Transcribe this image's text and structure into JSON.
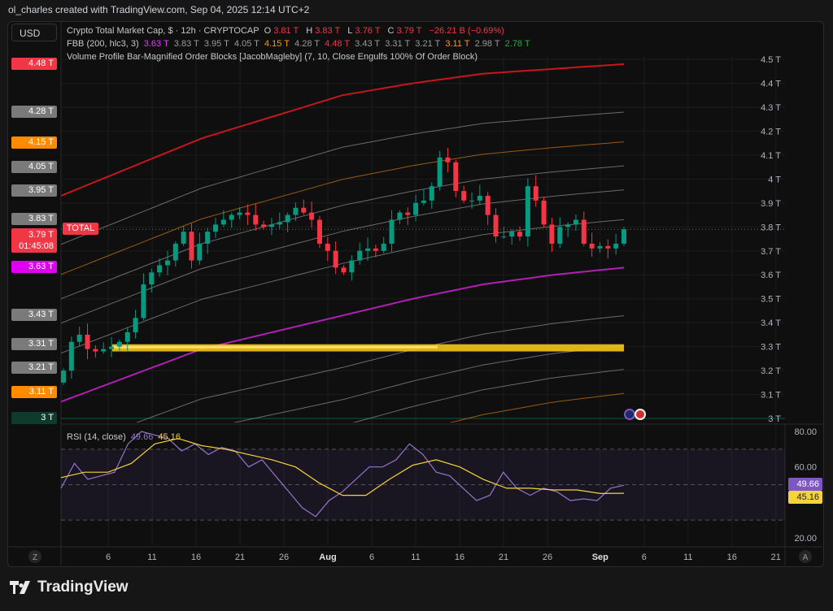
{
  "header": {
    "attribution": "ol_charles created with TradingView.com, Sep 04, 2025 12:14 UTC+2"
  },
  "currency_button": "USD",
  "legend": {
    "symbol": "Crypto Total Market Cap, $ · 12h · CRYPTOCAP",
    "o_label": "O",
    "o": "3.81 T",
    "h_label": "H",
    "h": "3.83 T",
    "l_label": "L",
    "l": "3.76 T",
    "c_label": "C",
    "c": "3.79 T",
    "change": "−26.21 B (−0.69%)",
    "fbb_label": "FBB (200, hlc3, 3)",
    "fbb_values": [
      "3.63 T",
      "3.83 T",
      "3.95 T",
      "4.05 T",
      "4.15 T",
      "4.28 T",
      "4.48 T",
      "3.43 T",
      "3.31 T",
      "3.21 T",
      "3.11 T",
      "2.98 T",
      "2.78 T"
    ],
    "vp_label": "Volume Profile Bar-Magnified Order Blocks [JacobMagleby] (7, 10, Close Engulfs 100% Of Order Block)"
  },
  "price_axis": {
    "ticks": [
      "4.5 T",
      "4.4 T",
      "4.3 T",
      "4.2 T",
      "4.1 T",
      "4 T",
      "3.9 T",
      "3.8 T",
      "3.7 T",
      "3.6 T",
      "3.5 T",
      "3.4 T",
      "3.3 T",
      "3.2 T",
      "3.1 T",
      "3 T"
    ],
    "badges": [
      {
        "label": "4.48 T",
        "value": 4.48,
        "color": "#f23645"
      },
      {
        "label": "4.28 T",
        "value": 4.28,
        "color": "#7a7a7a"
      },
      {
        "label": "4.15 T",
        "value": 4.15,
        "color": "#ff8c00"
      },
      {
        "label": "4.05 T",
        "value": 4.05,
        "color": "#7a7a7a"
      },
      {
        "label": "3.95 T",
        "value": 3.95,
        "color": "#7a7a7a"
      },
      {
        "label": "3.83 T",
        "value": 3.83,
        "color": "#7a7a7a"
      },
      {
        "label": "3.63 T",
        "value": 3.63,
        "color": "#e000f0"
      },
      {
        "label": "3.43 T",
        "value": 3.43,
        "color": "#7a7a7a"
      },
      {
        "label": "3.31 T",
        "value": 3.31,
        "color": "#7a7a7a"
      },
      {
        "label": "3.21 T",
        "value": 3.21,
        "color": "#7a7a7a"
      },
      {
        "label": "3.11 T",
        "value": 3.11,
        "color": "#ff8c00"
      },
      {
        "label": "3 T",
        "value": 3.0,
        "color": "#0e3b2e"
      }
    ],
    "last_price": {
      "label": "3.79 T",
      "countdown": "01:45:08",
      "symbol_tag": "TOTAL",
      "color": "#f23645"
    }
  },
  "time_axis": {
    "labels": [
      "6",
      "11",
      "16",
      "21",
      "26",
      "Aug",
      "6",
      "11",
      "16",
      "21",
      "26",
      "Sep",
      "6",
      "11",
      "16",
      "21"
    ],
    "left_button": "Z",
    "right_button": "A"
  },
  "rsi": {
    "label": "RSI (14, close)",
    "value": "49.66",
    "signal": "45.16",
    "axis": [
      "80.00",
      "60.00",
      "20.00"
    ],
    "colors": {
      "rsi": "#9575cd",
      "signal": "#f5d33a"
    }
  },
  "logo": "TradingView",
  "chart_data": {
    "type": "candlestick",
    "title": "Crypto Total Market Cap, $ · 12h · CRYPTOCAP",
    "date_range": [
      "Jul 1, 2025",
      "Sep 4, 2025"
    ],
    "ylim": [
      2.95,
      4.52
    ],
    "units": "T",
    "closes": [
      3.2,
      3.32,
      3.35,
      3.29,
      3.28,
      3.29,
      3.3,
      3.32,
      3.36,
      3.42,
      3.56,
      3.61,
      3.64,
      3.66,
      3.73,
      3.78,
      3.66,
      3.73,
      3.78,
      3.81,
      3.83,
      3.85,
      3.86,
      3.85,
      3.81,
      3.8,
      3.81,
      3.82,
      3.85,
      3.88,
      3.86,
      3.83,
      3.73,
      3.7,
      3.63,
      3.61,
      3.66,
      3.7,
      3.71,
      3.7,
      3.73,
      3.83,
      3.86,
      3.85,
      3.9,
      3.91,
      3.97,
      4.09,
      4.07,
      3.95,
      3.91,
      3.91,
      3.93,
      3.85,
      3.76,
      3.76,
      3.78,
      3.76,
      3.97,
      3.91,
      3.81,
      3.73,
      3.8,
      3.81,
      3.83,
      3.73,
      3.71,
      3.72,
      3.71,
      3.73,
      3.79
    ],
    "fbb": {
      "basis": [
        3.07,
        3.18,
        3.29,
        3.36,
        3.43,
        3.5,
        3.56,
        3.6,
        3.63
      ],
      "deviation": [
        0.86,
        0.87,
        0.88,
        0.9,
        0.92,
        0.9,
        0.88,
        0.86,
        0.85
      ],
      "levels": [
        {
          "k": 1,
          "color": "#c8161d"
        },
        {
          "k": 0.764,
          "color": "#8a8a8a"
        },
        {
          "k": 0.618,
          "color": "#c8741a"
        },
        {
          "k": 0.5,
          "color": "#8a8a8a"
        },
        {
          "k": 0.382,
          "color": "#8a8a8a"
        },
        {
          "k": 0.236,
          "color": "#8a8a8a"
        },
        {
          "k": 0,
          "color": "#b21fb5"
        },
        {
          "k": -0.236,
          "color": "#8a8a8a"
        },
        {
          "k": -0.382,
          "color": "#8a8a8a"
        },
        {
          "k": -0.5,
          "color": "#8a8a8a"
        },
        {
          "k": -0.618,
          "color": "#c8741a"
        },
        {
          "k": -0.764,
          "color": "#8a8a8a"
        },
        {
          "k": -1,
          "color": "#22ab45"
        }
      ]
    },
    "order_block": {
      "top": 3.31,
      "bottom": 3.28,
      "start": "Jul 7",
      "color": "#f5c518"
    },
    "rsi_series": [
      48,
      62,
      53,
      55,
      57,
      73,
      80,
      78,
      76,
      69,
      73,
      67,
      71,
      69,
      60,
      64,
      55,
      46,
      37,
      32,
      41,
      46,
      53,
      60,
      60,
      64,
      73,
      67,
      57,
      55,
      48,
      41,
      44,
      57,
      48,
      44,
      48,
      46,
      41,
      42,
      41,
      48,
      49.66
    ],
    "rsi_signal": [
      54,
      57,
      57,
      62,
      73,
      76,
      72,
      70,
      67,
      64,
      60,
      51,
      44,
      44,
      53,
      61,
      64,
      60,
      53,
      48,
      48,
      47,
      47,
      45,
      45.16
    ],
    "rsi_ylim": [
      20,
      80
    ],
    "rsi_bands": [
      70,
      50,
      30
    ],
    "up_color": "#089981",
    "down_color": "#f23645"
  }
}
